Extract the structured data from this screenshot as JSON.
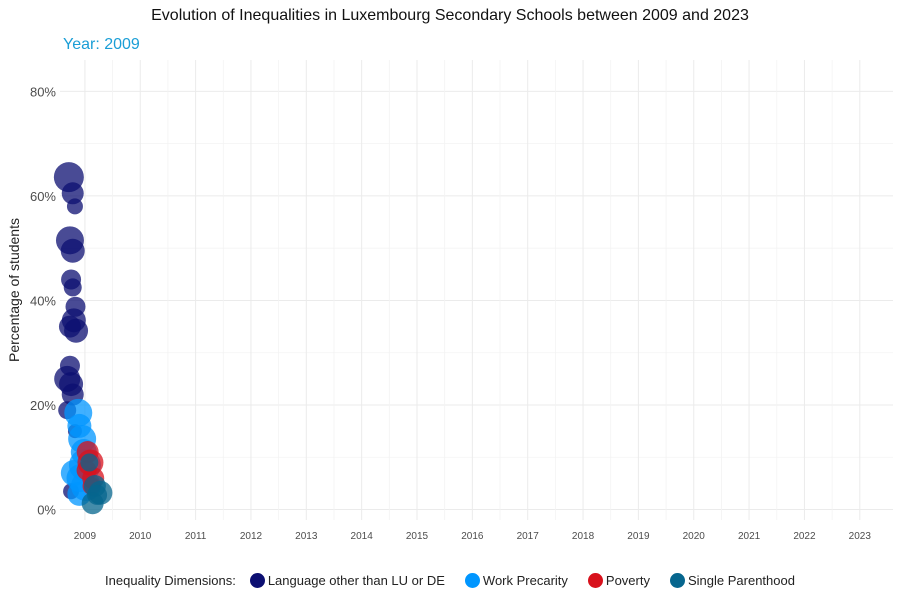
{
  "chart_data": {
    "type": "scatter",
    "title": "Evolution of Inequalities in Luxembourg Secondary Schools between 2009 and 2023",
    "subtitle": "Year: 2009",
    "xlabel": "",
    "ylabel": "Percentage of students",
    "xlim": [
      2008.55,
      2023.6
    ],
    "ylim": [
      -0.02,
      0.86
    ],
    "x_ticks": [
      "2009",
      "2010",
      "2011",
      "2012",
      "2013",
      "2014",
      "2015",
      "2016",
      "2017",
      "2018",
      "2019",
      "2020",
      "2021",
      "2022",
      "2023"
    ],
    "y_ticks": [
      {
        "value": 0.0,
        "label": "0%"
      },
      {
        "value": 0.2,
        "label": "20%"
      },
      {
        "value": 0.4,
        "label": "40%"
      },
      {
        "value": 0.6,
        "label": "60%"
      },
      {
        "value": 0.8,
        "label": "80%"
      }
    ],
    "grid": true,
    "legend_position": "bottom",
    "legend_title": "Inequality Dimensions:",
    "series": [
      {
        "name": "Language other than LU or DE",
        "color": "#0c0f72",
        "points": [
          {
            "x": 2008.71,
            "y": 0.636,
            "size": 15
          },
          {
            "x": 2008.78,
            "y": 0.605,
            "size": 11
          },
          {
            "x": 2008.82,
            "y": 0.58,
            "size": 8
          },
          {
            "x": 2008.73,
            "y": 0.515,
            "size": 14
          },
          {
            "x": 2008.78,
            "y": 0.495,
            "size": 12
          },
          {
            "x": 2008.75,
            "y": 0.44,
            "size": 10
          },
          {
            "x": 2008.78,
            "y": 0.425,
            "size": 9
          },
          {
            "x": 2008.83,
            "y": 0.388,
            "size": 10
          },
          {
            "x": 2008.8,
            "y": 0.362,
            "size": 12
          },
          {
            "x": 2008.73,
            "y": 0.35,
            "size": 11
          },
          {
            "x": 2008.84,
            "y": 0.342,
            "size": 12
          },
          {
            "x": 2008.73,
            "y": 0.275,
            "size": 10
          },
          {
            "x": 2008.68,
            "y": 0.25,
            "size": 13
          },
          {
            "x": 2008.75,
            "y": 0.24,
            "size": 12
          },
          {
            "x": 2008.78,
            "y": 0.22,
            "size": 11
          },
          {
            "x": 2008.68,
            "y": 0.19,
            "size": 9
          },
          {
            "x": 2008.82,
            "y": 0.15,
            "size": 7
          },
          {
            "x": 2008.75,
            "y": 0.035,
            "size": 8
          }
        ]
      },
      {
        "name": "Work Precarity",
        "color": "#0096ff",
        "points": [
          {
            "x": 2008.88,
            "y": 0.185,
            "size": 14
          },
          {
            "x": 2008.9,
            "y": 0.16,
            "size": 12
          },
          {
            "x": 2008.95,
            "y": 0.135,
            "size": 14
          },
          {
            "x": 2008.98,
            "y": 0.11,
            "size": 13
          },
          {
            "x": 2009.0,
            "y": 0.085,
            "size": 16
          },
          {
            "x": 2008.8,
            "y": 0.07,
            "size": 13
          },
          {
            "x": 2008.92,
            "y": 0.06,
            "size": 14
          },
          {
            "x": 2009.02,
            "y": 0.045,
            "size": 15
          },
          {
            "x": 2008.9,
            "y": 0.03,
            "size": 12
          }
        ]
      },
      {
        "name": "Poverty",
        "color": "#d8111c",
        "points": [
          {
            "x": 2009.05,
            "y": 0.11,
            "size": 11
          },
          {
            "x": 2009.1,
            "y": 0.09,
            "size": 13
          },
          {
            "x": 2009.03,
            "y": 0.075,
            "size": 10
          },
          {
            "x": 2009.15,
            "y": 0.06,
            "size": 11
          },
          {
            "x": 2009.12,
            "y": 0.045,
            "size": 9
          }
        ]
      },
      {
        "name": "Single Parenthood",
        "color": "#06668e",
        "points": [
          {
            "x": 2009.08,
            "y": 0.09,
            "size": 9
          },
          {
            "x": 2009.18,
            "y": 0.045,
            "size": 11
          },
          {
            "x": 2009.28,
            "y": 0.032,
            "size": 12
          },
          {
            "x": 2009.22,
            "y": 0.028,
            "size": 10
          },
          {
            "x": 2009.14,
            "y": 0.012,
            "size": 11
          }
        ]
      }
    ]
  }
}
